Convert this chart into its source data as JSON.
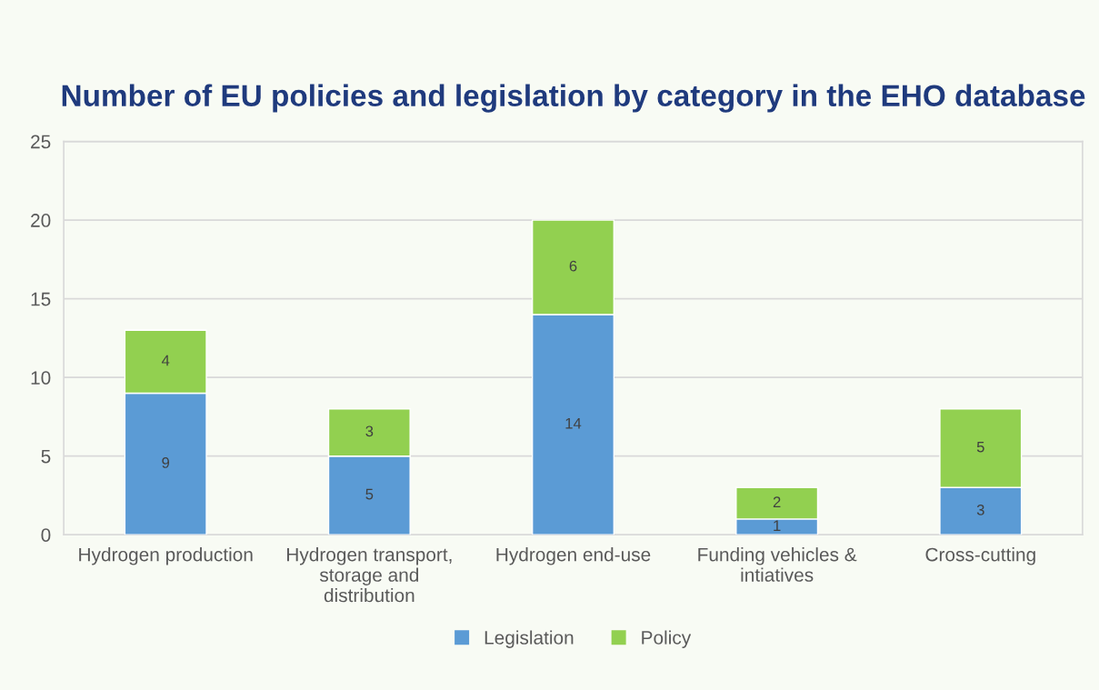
{
  "chart_data": {
    "type": "bar",
    "title": "Number of EU policies and legislation by category in the EHO database",
    "categories": [
      "Hydrogen production",
      "Hydrogen transport, storage and distribution",
      "Hydrogen end-use",
      "Funding vehicles & intiatives",
      "Cross-cutting"
    ],
    "series": [
      {
        "name": "Legislation",
        "color": "#5b9bd5",
        "values": [
          9,
          5,
          14,
          1,
          3
        ]
      },
      {
        "name": "Policy",
        "color": "#92d050",
        "values": [
          4,
          3,
          6,
          2,
          5
        ]
      }
    ],
    "stacked": true,
    "ylim": [
      0,
      25
    ],
    "yticks": [
      0,
      5,
      10,
      15,
      20,
      25
    ],
    "grid": "y",
    "legend": "bottom",
    "data_labels": true
  }
}
